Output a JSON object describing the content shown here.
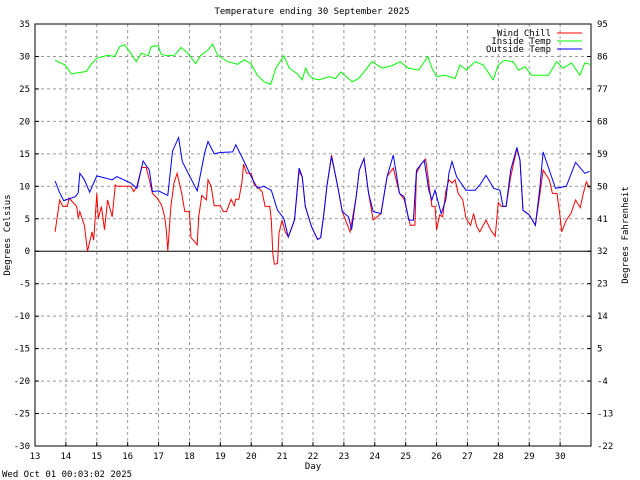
{
  "chart_data": {
    "type": "line",
    "title": "Temperature ending 30 September 2025",
    "xlabel": "Day",
    "ylabel": "Degrees Celsius",
    "ylabel_right": "Degrees Fahrenheit",
    "xlim": [
      13,
      31
    ],
    "ylim": [
      -30,
      35
    ],
    "x_ticks": [
      13,
      14,
      15,
      16,
      17,
      18,
      19,
      20,
      21,
      22,
      23,
      24,
      25,
      26,
      27,
      28,
      29,
      30
    ],
    "x_tick_labels": [
      "13",
      "14",
      "15",
      "16",
      "17",
      "18",
      "19",
      "20",
      "21",
      "22",
      "23",
      "24",
      "25",
      "26",
      "27",
      "28",
      "29",
      "30"
    ],
    "y_ticks": [
      35,
      30,
      25,
      20,
      15,
      10,
      5,
      0,
      -5,
      -10,
      -15,
      -20,
      -25,
      -30
    ],
    "y_tick_labels": [
      "35",
      "30",
      "25",
      "20",
      "15",
      "10",
      "5",
      "0",
      "-5",
      "-10",
      "-15",
      "-20",
      "-25",
      "-30"
    ],
    "y_right_tick_labels": [
      "95",
      "86",
      "77",
      "68",
      "59",
      "50",
      "41",
      "32",
      "23",
      "14",
      "5",
      "-4",
      "-13",
      "-22"
    ],
    "grid": true,
    "legend_placement": "top-right",
    "series": [
      {
        "name": "Wind Chill",
        "color": "#ff0000",
        "x": [
          13.65,
          13.8,
          13.9,
          14.05,
          14.1,
          14.35,
          14.4,
          14.45,
          14.6,
          14.7,
          14.85,
          14.9,
          15.0,
          15.05,
          15.15,
          15.25,
          15.35,
          15.5,
          15.6,
          15.65,
          16.1,
          16.2,
          16.3,
          16.45,
          16.6,
          16.7,
          16.8,
          16.95,
          17.1,
          17.2,
          17.25,
          17.3,
          17.4,
          17.5,
          17.6,
          17.75,
          17.85,
          18.0,
          18.05,
          18.25,
          18.3,
          18.4,
          18.55,
          18.6,
          18.7,
          18.8,
          19.0,
          19.1,
          19.2,
          19.35,
          19.45,
          19.5,
          19.6,
          19.7,
          19.75,
          19.85,
          20.0,
          20.1,
          20.25,
          20.35,
          20.45,
          20.6,
          20.65,
          20.7,
          20.75,
          20.85,
          20.9,
          21.0,
          21.1,
          21.2,
          21.4,
          21.55,
          21.65,
          21.75,
          21.95,
          22.15,
          22.25,
          22.35,
          22.45,
          22.6,
          22.8,
          22.95,
          23.2,
          23.4,
          23.5,
          23.65,
          23.8,
          23.95,
          24.2,
          24.4,
          24.6,
          24.8,
          24.95,
          25.15,
          25.3,
          25.35,
          25.5,
          25.65,
          25.75,
          25.85,
          25.95,
          26.0,
          26.1,
          26.2,
          26.3,
          26.4,
          26.5,
          26.6,
          26.7,
          26.85,
          26.95,
          27.1,
          27.2,
          27.3,
          27.4,
          27.6,
          27.75,
          27.9,
          28.0,
          28.1,
          28.25,
          28.4,
          28.6,
          28.7,
          28.8,
          29.0,
          29.2,
          29.35,
          29.45,
          29.65,
          29.75,
          29.9,
          30.0,
          30.05,
          30.2,
          30.35,
          30.5,
          30.65,
          30.75,
          30.85,
          30.95
        ],
        "y": [
          3,
          7.9,
          6.9,
          6.9,
          8.2,
          6.9,
          5.1,
          6.1,
          4,
          0,
          3,
          1.7,
          8.9,
          5,
          6.9,
          3.3,
          7.9,
          5.3,
          10.2,
          10,
          10,
          9.2,
          10,
          12.9,
          12.9,
          11,
          8.9,
          8.2,
          7.1,
          5.3,
          3.3,
          0.1,
          6.9,
          10.5,
          12,
          8.9,
          6.1,
          6.1,
          2.1,
          1,
          5.3,
          8.6,
          7.9,
          11,
          10,
          7,
          7,
          6.1,
          6.1,
          8,
          7,
          8,
          8,
          10.7,
          13.4,
          12,
          12,
          10.2,
          9.7,
          9.2,
          6.9,
          6.9,
          4.8,
          -0.3,
          -2,
          -1.9,
          2.8,
          4.8,
          3,
          2.2,
          4.8,
          12.3,
          11.5,
          6.9,
          3.8,
          1.8,
          2.1,
          5.7,
          10,
          14.8,
          10,
          6.1,
          3,
          8.4,
          12.5,
          14.3,
          8.9,
          4.8,
          5.8,
          11.5,
          12.8,
          8.9,
          8,
          4,
          4,
          12,
          13.4,
          14.2,
          10.5,
          6.9,
          6.9,
          3.3,
          5.6,
          5.3,
          9.2,
          11,
          10.5,
          11,
          8.9,
          7.9,
          5.1,
          4,
          5.8,
          3.8,
          3,
          4.8,
          3.3,
          2.3,
          7.5,
          6.9,
          6.9,
          11.5,
          15.8,
          14,
          6.3,
          5.6,
          4,
          8.9,
          12.5,
          11,
          8.9,
          8.9,
          5.3,
          3,
          4.8,
          5.8,
          7.9,
          6.7,
          8.9,
          10.7,
          9.7
        ]
      },
      {
        "name": "Inside Temp",
        "color": "#00ff00",
        "x": [
          13.65,
          13.97,
          14.18,
          14.4,
          14.67,
          14.77,
          14.99,
          15.2,
          15.37,
          15.58,
          15.74,
          15.9,
          16.06,
          16.28,
          16.44,
          16.66,
          16.76,
          16.98,
          17.09,
          17.3,
          17.52,
          17.73,
          17.95,
          18.2,
          18.37,
          18.6,
          18.75,
          18.91,
          19.24,
          19.56,
          19.77,
          19.99,
          20.2,
          20.42,
          20.63,
          20.8,
          21.06,
          21.23,
          21.5,
          21.65,
          21.76,
          21.87,
          22.01,
          22.19,
          22.52,
          22.73,
          22.9,
          23.27,
          23.48,
          23.75,
          23.91,
          24.24,
          24.56,
          24.82,
          25.09,
          25.42,
          25.72,
          25.85,
          26.0,
          26.27,
          26.6,
          26.76,
          26.97,
          27.24,
          27.51,
          27.83,
          28.0,
          28.2,
          28.48,
          28.65,
          28.87,
          29.08,
          29.62,
          29.89,
          30.1,
          30.37,
          30.64,
          30.8,
          30.97
        ],
        "y": [
          29.4,
          28.7,
          27.3,
          27.5,
          27.7,
          28.5,
          29.7,
          30,
          30.2,
          30,
          31.5,
          31.8,
          30.8,
          29.2,
          30.5,
          30.1,
          31.5,
          31.7,
          30.3,
          30.1,
          30.2,
          31.4,
          30.5,
          28.9,
          30.2,
          31,
          31.9,
          30.2,
          29.2,
          28.8,
          29.5,
          28.9,
          27.1,
          26.1,
          25.7,
          28.2,
          30.1,
          28.2,
          27.3,
          26.4,
          28.2,
          27.1,
          26.6,
          26.4,
          26.9,
          26.6,
          27.6,
          26.1,
          26.6,
          28.2,
          29.2,
          28.2,
          28.6,
          29.2,
          28.2,
          27.9,
          30,
          28.2,
          26.9,
          27.1,
          26.6,
          28.7,
          27.9,
          29.2,
          28.7,
          26.4,
          28.7,
          29.4,
          29.2,
          27.9,
          28.4,
          27.1,
          27.1,
          29.2,
          28.2,
          29,
          27.1,
          29,
          28.8
        ]
      },
      {
        "name": "Outside Temp",
        "color": "#0000ff",
        "x": [
          13.65,
          13.8,
          13.93,
          14.3,
          14.4,
          14.45,
          14.6,
          14.77,
          15.0,
          15.5,
          15.65,
          16.1,
          16.3,
          16.5,
          16.7,
          16.8,
          17.0,
          17.3,
          17.45,
          17.65,
          17.77,
          18.25,
          18.5,
          18.6,
          18.8,
          19.0,
          19.4,
          19.5,
          19.7,
          20.0,
          20.2,
          20.4,
          20.65,
          20.85,
          21.05,
          21.2,
          21.4,
          21.55,
          21.65,
          21.75,
          21.95,
          22.15,
          22.25,
          22.35,
          22.45,
          22.6,
          22.8,
          22.95,
          23.15,
          23.25,
          23.4,
          23.5,
          23.65,
          23.8,
          23.95,
          24.2,
          24.4,
          24.6,
          24.8,
          24.95,
          25.1,
          25.25,
          25.35,
          25.6,
          25.75,
          25.85,
          25.95,
          26.15,
          26.3,
          26.4,
          26.5,
          26.65,
          26.95,
          27.25,
          27.4,
          27.6,
          27.85,
          28.05,
          28.15,
          28.25,
          28.4,
          28.6,
          28.7,
          28.8,
          29.0,
          29.2,
          29.35,
          29.45,
          29.65,
          29.85,
          30.2,
          30.5,
          30.8,
          30.95
        ],
        "y": [
          10.8,
          9,
          7.8,
          8.4,
          9,
          12,
          11,
          9.1,
          11.6,
          11,
          11.5,
          10.5,
          9.7,
          13.9,
          12.5,
          9.2,
          9.3,
          8.6,
          15.4,
          17.5,
          13.8,
          9.3,
          15.3,
          16.9,
          15,
          15.2,
          15.3,
          16.4,
          14.5,
          11.5,
          9.7,
          10,
          9.4,
          6.3,
          5.1,
          2.2,
          4.8,
          12.8,
          11.5,
          6.9,
          3.8,
          1.8,
          2.1,
          5.7,
          10,
          14.6,
          10,
          6.1,
          5.3,
          3.3,
          8.4,
          12.5,
          14.3,
          8.9,
          6.1,
          5.8,
          11.5,
          14.8,
          8.9,
          8.4,
          4.8,
          4.8,
          12.5,
          14,
          9.4,
          7.9,
          9.4,
          5.8,
          7.9,
          12,
          13.8,
          11.5,
          9.4,
          9.4,
          10.2,
          11.7,
          9.7,
          9.4,
          6.9,
          6.9,
          12.5,
          16,
          14,
          6.3,
          5.6,
          4,
          10,
          15.3,
          12.5,
          9.7,
          10,
          13.7,
          12,
          12.3
        ]
      }
    ]
  },
  "footer": {
    "timestamp": "Wed Oct 01 00:03:02 2025"
  }
}
